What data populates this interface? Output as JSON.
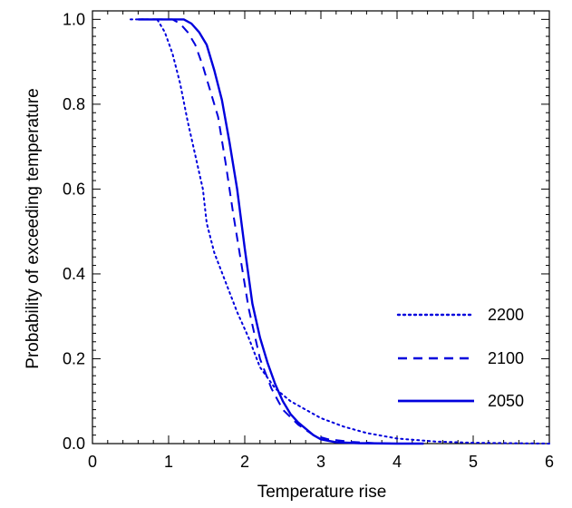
{
  "chart_data": {
    "type": "line",
    "xlabel": "Temperature rise",
    "ylabel": "Probability of exceeding temperature",
    "xlim": [
      0,
      6
    ],
    "ylim": [
      0,
      1.02
    ],
    "xticks": [
      0,
      1,
      2,
      3,
      4,
      5,
      6
    ],
    "xtick_labels": [
      "0",
      "1",
      "2",
      "3",
      "4",
      "5",
      "6"
    ],
    "yticks": [
      0,
      0.2,
      0.4,
      0.6,
      0.8,
      1.0
    ],
    "ytick_labels": [
      "0.0",
      "0.2",
      "0.4",
      "0.6",
      "0.8",
      "1.0"
    ],
    "grid": false,
    "legend_position": "right",
    "line_color": "#0000dd",
    "series": [
      {
        "name": "2200",
        "style": "dotted",
        "x": [
          0.5,
          0.85,
          0.95,
          1.05,
          1.15,
          1.25,
          1.35,
          1.45,
          1.5,
          1.6,
          1.75,
          1.9,
          2.05,
          2.2,
          2.4,
          2.6,
          2.8,
          3.0,
          3.3,
          3.6,
          4.0,
          4.5,
          5.0,
          6.0
        ],
        "y": [
          1.0,
          1.0,
          0.97,
          0.92,
          0.85,
          0.76,
          0.68,
          0.6,
          0.52,
          0.45,
          0.38,
          0.31,
          0.25,
          0.18,
          0.13,
          0.1,
          0.08,
          0.06,
          0.04,
          0.025,
          0.012,
          0.005,
          0.002,
          0.0
        ]
      },
      {
        "name": "2100",
        "style": "dashed",
        "x": [
          0.6,
          1.05,
          1.15,
          1.25,
          1.35,
          1.45,
          1.55,
          1.65,
          1.75,
          1.85,
          1.95,
          2.05,
          2.2,
          2.35,
          2.5,
          2.7,
          2.9,
          3.1,
          3.4,
          3.7,
          4.0
        ],
        "y": [
          1.0,
          1.0,
          0.99,
          0.97,
          0.94,
          0.89,
          0.83,
          0.77,
          0.66,
          0.54,
          0.43,
          0.32,
          0.2,
          0.13,
          0.08,
          0.045,
          0.02,
          0.01,
          0.004,
          0.001,
          0.0
        ]
      },
      {
        "name": "2050",
        "style": "solid",
        "x": [
          0.6,
          1.2,
          1.3,
          1.4,
          1.5,
          1.6,
          1.7,
          1.8,
          1.9,
          2.0,
          2.1,
          2.2,
          2.3,
          2.4,
          2.5,
          2.6,
          2.7,
          2.8,
          2.9,
          3.0,
          3.2,
          3.5,
          4.0,
          4.35
        ],
        "y": [
          1.0,
          1.0,
          0.99,
          0.97,
          0.94,
          0.88,
          0.81,
          0.71,
          0.6,
          0.46,
          0.33,
          0.25,
          0.19,
          0.14,
          0.1,
          0.07,
          0.05,
          0.035,
          0.02,
          0.01,
          0.003,
          0.001,
          0.0,
          0.0
        ]
      }
    ]
  }
}
